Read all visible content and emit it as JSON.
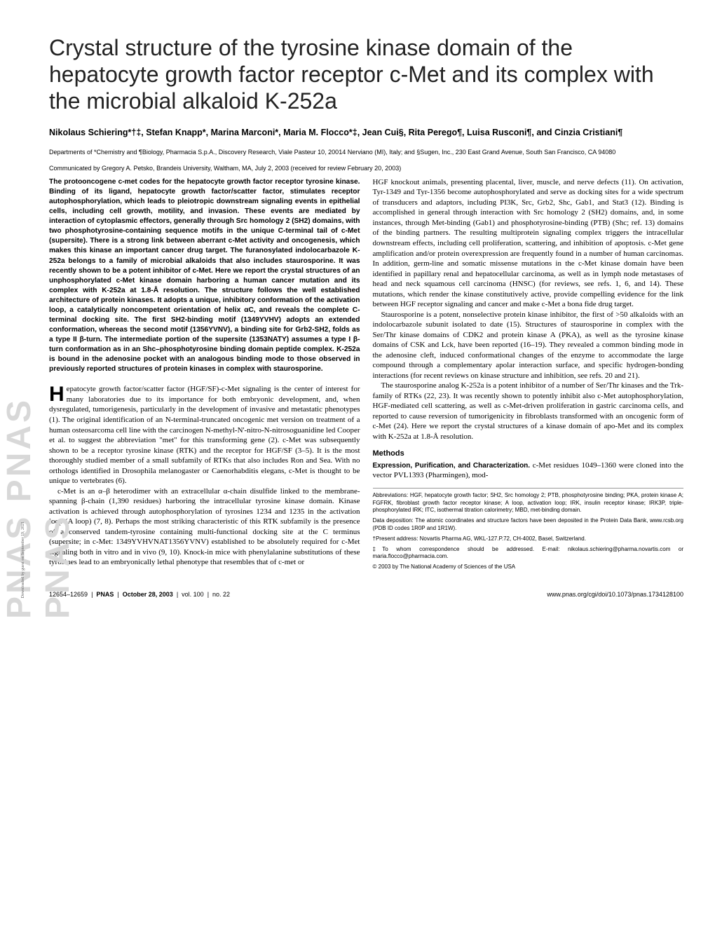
{
  "watermark": "PNAS  PNAS  PNAS",
  "download_note": "Downloaded by guest on September 19, 2021",
  "title": "Crystal structure of the tyrosine kinase domain of the hepatocyte growth factor receptor c-Met and its complex with the microbial alkaloid K-252a",
  "authors": "Nikolaus Schiering*†‡, Stefan Knapp*, Marina Marconi*, Maria M. Flocco*‡, Jean Cui§, Rita Perego¶, Luisa Rusconi¶, and Cinzia Cristiani¶",
  "affiliations": "Departments of *Chemistry and ¶Biology, Pharmacia S.p.A., Discovery Research, Viale Pasteur 10, 20014 Nerviano (MI), Italy; and §Sugen, Inc., 230 East Grand Avenue, South San Francisco, CA 94080",
  "communicated": "Communicated by Gregory A. Petsko, Brandeis University, Waltham, MA, July 2, 2003 (received for review February 20, 2003)",
  "abstract": "The protooncogene c-met codes for the hepatocyte growth factor receptor tyrosine kinase. Binding of its ligand, hepatocyte growth factor/scatter factor, stimulates receptor autophosphorylation, which leads to pleiotropic downstream signaling events in epithelial cells, including cell growth, motility, and invasion. These events are mediated by interaction of cytoplasmic effectors, generally through Src homology 2 (SH2) domains, with two phosphotyrosine-containing sequence motifs in the unique C-terminal tail of c-Met (supersite). There is a strong link between aberrant c-Met activity and oncogenesis, which makes this kinase an important cancer drug target. The furanosylated indolocarbazole K-252a belongs to a family of microbial alkaloids that also includes staurosporine. It was recently shown to be a potent inhibitor of c-Met. Here we report the crystal structures of an unphosphorylated c-Met kinase domain harboring a human cancer mutation and its complex with K-252a at 1.8-Å resolution. The structure follows the well established architecture of protein kinases. It adopts a unique, inhibitory conformation of the activation loop, a catalytically noncompetent orientation of helix αC, and reveals the complete C-terminal docking site. The first SH2-binding motif (1349YVHV) adopts an extended conformation, whereas the second motif (1356YVNV), a binding site for Grb2-SH2, folds as a type II β-turn. The intermediate portion of the supersite (1353NATY) assumes a type I β-turn conformation as in an Shc–phosphotyrosine binding domain peptide complex. K-252a is bound in the adenosine pocket with an analogous binding mode to those observed in previously reported structures of protein kinases in complex with staurosporine.",
  "dropcap_letter": "H",
  "body_p1": "epatocyte growth factor/scatter factor (HGF/SF)-c-Met signaling is the center of interest for many laboratories due to its importance for both embryonic development, and, when dysregulated, tumorigenesis, particularly in the development of invasive and metastatic phenotypes (1). The original identification of an N-terminal-truncated oncogenic met version on treatment of a human osteosarcoma cell line with the carcinogen N-methyl-N'-nitro-N-nitrosoguanidine led Cooper et al. to suggest the abbreviation \"met\" for this transforming gene (2). c-Met was subsequently shown to be a receptor tyrosine kinase (RTK) and the receptor for HGF/SF (3–5). It is the most thoroughly studied member of a small subfamily of RTKs that also includes Ron and Sea. With no orthologs identified in Drosophila melanogaster or Caenorhabditis elegans, c-Met is thought to be unique to vertebrates (6).",
  "body_p2": "c-Met is an α–β heterodimer with an extracellular α-chain disulfide linked to the membrane-spanning β-chain (1,390 residues) harboring the intracellular tyrosine kinase domain. Kinase activation is achieved through autophosphorylation of tyrosines 1234 and 1235 in the activation loop (A loop) (7, 8). Perhaps the most striking characteristic of this RTK subfamily is the presence of a conserved tandem-tyrosine containing multi-functional docking site at the C terminus (supersite; in c-Met: 1349YVHVNAT1356YVNV) established to be absolutely required for c-Met signaling both in vitro and in vivo (9, 10). Knock-in mice with phenylalanine substitutions of these tyrosines lead to an embryonically lethal phenotype that resembles that of c-met or",
  "body_p3": "HGF knockout animals, presenting placental, liver, muscle, and nerve defects (11). On activation, Tyr-1349 and Tyr-1356 become autophosphorylated and serve as docking sites for a wide spectrum of transducers and adaptors, including PI3K, Src, Grb2, Shc, Gab1, and Stat3 (12). Binding is accomplished in general through interaction with Src homology 2 (SH2) domains, and, in some instances, through Met-binding (Gab1) and phosphotyrosine-binding (PTB) (Shc; ref. 13) domains of the binding partners. The resulting multiprotein signaling complex triggers the intracellular downstream effects, including cell proliferation, scattering, and inhibition of apoptosis. c-Met gene amplification and/or protein overexpression are frequently found in a number of human carcinomas. In addition, germ-line and somatic missense mutations in the c-Met kinase domain have been identified in papillary renal and hepatocellular carcinoma, as well as in lymph node metastases of head and neck squamous cell carcinoma (HNSC) (for reviews, see refs. 1, 6, and 14). These mutations, which render the kinase constitutively active, provide compelling evidence for the link between HGF receptor signaling and cancer and make c-Met a bona fide drug target.",
  "body_p4": "Staurosporine is a potent, nonselective protein kinase inhibitor, the first of >50 alkaloids with an indolocarbazole subunit isolated to date (15). Structures of staurosporine in complex with the Ser/Thr kinase domains of CDK2 and protein kinase A (PKA), as well as the tyrosine kinase domains of CSK and Lck, have been reported (16–19). They revealed a common binding mode in the adenosine cleft, induced conformational changes of the enzyme to accommodate the large compound through a complementary apolar interaction surface, and specific hydrogen-bonding interactions (for recent reviews on kinase structure and inhibition, see refs. 20 and 21).",
  "body_p5": "The staurosporine analog K-252a is a potent inhibitor of a number of Ser/Thr kinases and the Trk-family of RTKs (22, 23). It was recently shown to potently inhibit also c-Met autophosphorylation, HGF-mediated cell scattering, as well as c-Met-driven proliferation in gastric carcinoma cells, and reported to cause reversion of tumorigenicity in fibroblasts transformed with an oncogenic form of c-Met (24). Here we report the crystal structures of a kinase domain of apo-Met and its complex with K-252a at 1.8-Å resolution.",
  "methods_head": "Methods",
  "methods_sub": "Expression, Purification, and Characterization.",
  "methods_text": " c-Met residues 1049–1360 were cloned into the vector PVL1393 (Pharmingen), mod-",
  "footnotes": {
    "abbrev": "Abbreviations: HGF, hepatocyte growth factor; SH2, Src homology 2; PTB, phosphotyrosine binding; PKA, protein kinase A; FGFRK, fibroblast growth factor receptor kinase; A loop, activation loop; IRK, insulin receptor kinase; IRK3P, triple-phosphorylated IRK; ITC, isothermal titration calorimetry; MBD, met-binding domain.",
    "deposition": "Data deposition: The atomic coordinates and structure factors have been deposited in the Protein Data Bank, www.rcsb.org (PDB ID codes 1R0P and 1R1W).",
    "present": "†Present address: Novartis Pharma AG, WKL-127.P.72, CH-4002, Basel, Switzerland.",
    "correspondence": "‡To whom correspondence should be addressed. E-mail: nikolaus.schiering@pharma.novartis.com or maria.flocco@pharmacia.com.",
    "copyright": "© 2003 by The National Academy of Sciences of the USA"
  },
  "footer": {
    "pages": "12654–12659",
    "journal": "PNAS",
    "date": "October 28, 2003",
    "volume": "vol. 100",
    "issue": "no. 22",
    "url": "www.pnas.org/cgi/doi/10.1073/pnas.1734128100"
  }
}
